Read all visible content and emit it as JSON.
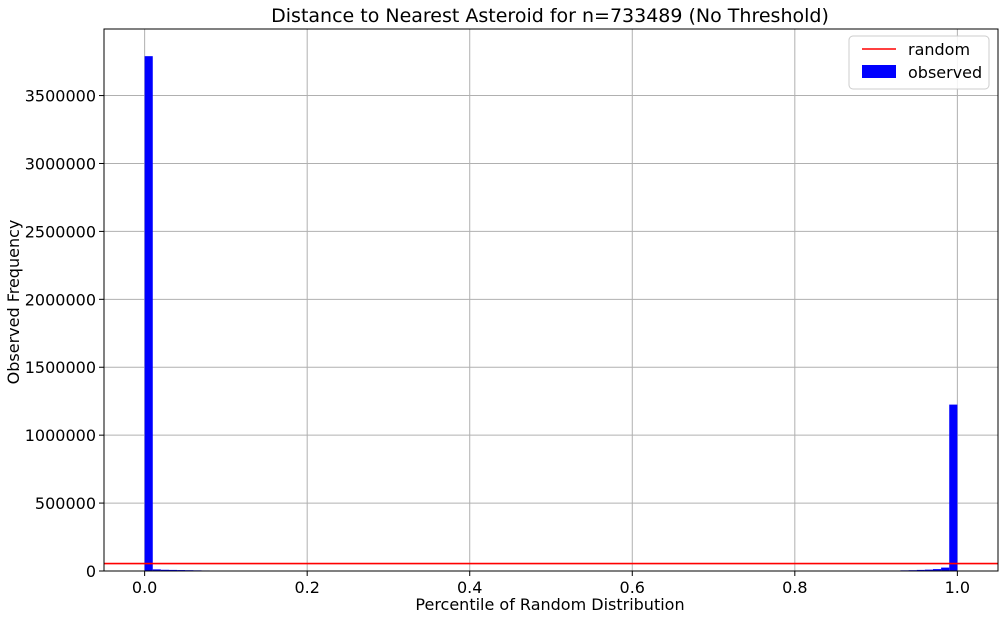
{
  "chart_data": {
    "type": "bar",
    "title": "Distance to Nearest Asteroid for n=733489 (No Threshold)",
    "xlabel": "Percentile of Random Distribution",
    "ylabel": "Observed Frequency",
    "xlim": [
      -0.05,
      1.05
    ],
    "ylim": [
      0,
      3990000
    ],
    "grid": true,
    "legend_position": "top-right",
    "xticks": [
      0.0,
      0.2,
      0.4,
      0.6,
      0.8,
      1.0
    ],
    "xtick_labels": [
      "0.0",
      "0.2",
      "0.4",
      "0.6",
      "0.8",
      "1.0"
    ],
    "yticks": [
      0,
      500000,
      1000000,
      1500000,
      2000000,
      2500000,
      3000000,
      3500000
    ],
    "ytick_labels": [
      "0",
      "500000",
      "1000000",
      "1500000",
      "2000000",
      "2500000",
      "3000000",
      "3500000"
    ],
    "bin_width": 0.01,
    "series": [
      {
        "name": "observed",
        "kind": "histogram",
        "color": "#0000ff",
        "bins": [
          {
            "x": 0.0,
            "value": 3790000
          },
          {
            "x": 0.01,
            "value": 12000
          },
          {
            "x": 0.02,
            "value": 9000
          },
          {
            "x": 0.03,
            "value": 8000
          },
          {
            "x": 0.04,
            "value": 7000
          },
          {
            "x": 0.05,
            "value": 6000
          },
          {
            "x": 0.06,
            "value": 5000
          },
          {
            "x": 0.07,
            "value": 4000
          },
          {
            "x": 0.93,
            "value": 5000
          },
          {
            "x": 0.94,
            "value": 6000
          },
          {
            "x": 0.95,
            "value": 8000
          },
          {
            "x": 0.96,
            "value": 10000
          },
          {
            "x": 0.97,
            "value": 14000
          },
          {
            "x": 0.98,
            "value": 25000
          },
          {
            "x": 0.99,
            "value": 1225000
          }
        ]
      },
      {
        "name": "random",
        "kind": "line",
        "color": "#ff0000",
        "y": 55000
      }
    ]
  }
}
